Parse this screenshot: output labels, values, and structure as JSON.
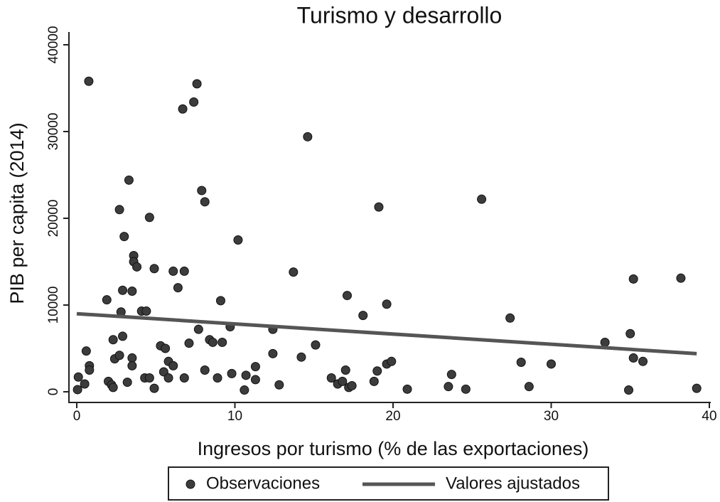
{
  "chart_data": {
    "type": "scatter",
    "title": "Turismo y desarrollo",
    "x_label": "Ingresos por turismo (% de las exportaciones)",
    "y_label": "PIB per capita (2014)",
    "xlim": [
      0,
      40
    ],
    "xticks": [
      0,
      10,
      20,
      30,
      40
    ],
    "ylim": [
      0,
      40000
    ],
    "yticks": [
      0,
      10000,
      20000,
      30000,
      40000
    ],
    "series": [
      {
        "name": "Observaciones",
        "color": "#3c3c3c",
        "mode": "markers",
        "x": [
          0.76,
          0.05,
          0.1,
          0.5,
          0.6,
          0.8,
          0.8,
          1.9,
          2.0,
          2.2,
          2.3,
          2.3,
          2.4,
          2.7,
          2.7,
          3.0,
          2.9,
          2.8,
          2.9,
          3.3,
          3.2,
          3.5,
          3.6,
          3.6,
          3.8,
          3.5,
          3.5,
          4.1,
          4.4,
          4.6,
          4.3,
          4.6,
          4.9,
          4.9,
          5.3,
          5.6,
          5.5,
          5.8,
          5.8,
          6.1,
          6.1,
          6.4,
          6.8,
          6.7,
          6.8,
          7.1,
          7.4,
          7.6,
          7.7,
          7.9,
          8.1,
          8.1,
          8.4,
          8.6,
          8.9,
          9.1,
          9.2,
          9.7,
          9.8,
          10.2,
          10.6,
          10.7,
          11.3,
          11.3,
          12.4,
          12.4,
          12.8,
          13.7,
          14.2,
          14.6,
          15.1,
          16.1,
          16.5,
          16.8,
          17.0,
          17.1,
          17.2,
          17.4,
          18.1,
          18.8,
          19.0,
          19.1,
          19.6,
          19.6,
          19.9,
          20.9,
          23.5,
          23.7,
          24.6,
          25.6,
          27.4,
          28.1,
          28.6,
          30.0,
          33.4,
          34.9,
          35.0,
          35.2,
          35.2,
          35.8,
          38.2,
          39.2
        ],
        "values": [
          35800,
          250,
          1700,
          900,
          4700,
          3000,
          2500,
          10600,
          1200,
          800,
          500,
          6000,
          3800,
          4200,
          21000,
          17900,
          11700,
          9200,
          6400,
          24400,
          1100,
          11600,
          15700,
          15000,
          14400,
          3900,
          3000,
          9300,
          9300,
          20100,
          1600,
          1600,
          14200,
          400,
          5300,
          5000,
          2300,
          1600,
          3500,
          3000,
          13900,
          12000,
          13900,
          32600,
          1600,
          5600,
          33400,
          35500,
          7200,
          23200,
          21900,
          2500,
          6000,
          5700,
          1600,
          10500,
          5700,
          7500,
          2100,
          17500,
          200,
          1900,
          1400,
          2900,
          7200,
          4400,
          800,
          13800,
          4000,
          29400,
          5400,
          1600,
          900,
          1200,
          2500,
          11100,
          500,
          700,
          8800,
          1200,
          2400,
          21300,
          3200,
          10100,
          3500,
          300,
          600,
          2000,
          300,
          22200,
          8500,
          3400,
          600,
          3200,
          5700,
          200,
          6700,
          3900,
          13000,
          3500,
          13100,
          400
        ]
      },
      {
        "name": "Valores ajustados",
        "color": "#555555",
        "mode": "line",
        "x": [
          0,
          39.2
        ],
        "values": [
          9000,
          4400
        ]
      }
    ]
  }
}
